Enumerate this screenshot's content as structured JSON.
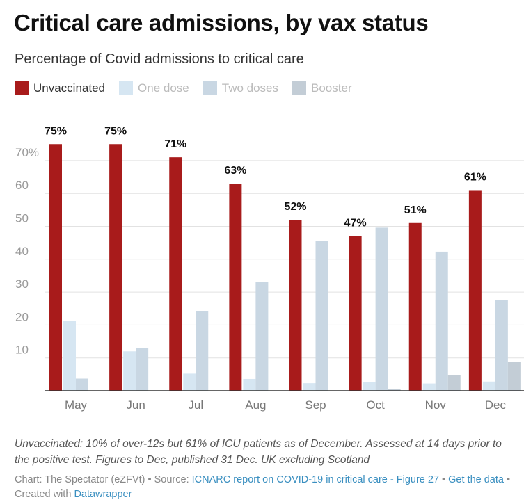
{
  "title": "Critical care admissions, by vax status",
  "subtitle": "Percentage of Covid admissions to critical care",
  "legend": [
    {
      "label": "Unvaccinated",
      "color": "#a81b1b",
      "text_color": "#333333"
    },
    {
      "label": "One dose",
      "color": "#d6e6f2",
      "text_color": "#bbbbbb"
    },
    {
      "label": "Two doses",
      "color": "#c9d7e3",
      "text_color": "#bbbbbb"
    },
    {
      "label": "Booster",
      "color": "#c3cdd6",
      "text_color": "#bbbbbb"
    }
  ],
  "chart_data": {
    "type": "bar",
    "categories": [
      "May",
      "Jun",
      "Jul",
      "Aug",
      "Sep",
      "Oct",
      "Nov",
      "Dec"
    ],
    "series": [
      {
        "name": "Unvaccinated",
        "color": "#a81b1b",
        "values": [
          75,
          75,
          71,
          63,
          52,
          47,
          51,
          61
        ]
      },
      {
        "name": "One dose",
        "color": "#d6e6f2",
        "values": [
          21.2,
          12,
          5.2,
          3.6,
          2.3,
          2.6,
          2.2,
          2.8
        ]
      },
      {
        "name": "Two doses",
        "color": "#c9d7e3",
        "values": [
          3.7,
          13.1,
          24.2,
          33,
          45.6,
          49.6,
          42.3,
          27.5
        ]
      },
      {
        "name": "Booster",
        "color": "#c3cdd6",
        "values": [
          0,
          0,
          0,
          0,
          0,
          0.6,
          4.8,
          8.8
        ]
      }
    ],
    "data_labels": [
      "75%",
      "75%",
      "71%",
      "63%",
      "52%",
      "47%",
      "51%",
      "61%"
    ],
    "y_ticks": [
      {
        "value": 10,
        "label": "10"
      },
      {
        "value": 20,
        "label": "20"
      },
      {
        "value": 30,
        "label": "30"
      },
      {
        "value": 40,
        "label": "40"
      },
      {
        "value": 50,
        "label": "50"
      },
      {
        "value": 60,
        "label": "60"
      },
      {
        "value": 70,
        "label": "70%"
      }
    ],
    "ylim": [
      0,
      80
    ],
    "grid": true,
    "legend_position": "top-left"
  },
  "note": "Unvaccinated: 10% of over-12s but 61% of ICU patients as of December. Assessed at 14 days prior to the positive test. Figures to Dec, published 31 Dec. UK excluding Scotland",
  "footer": {
    "chart_credit": "Chart: The Spectator (eZFVt)",
    "sep1": " • Source: ",
    "source_link": "ICNARC report on COVID-19 in critical care - Figure 27",
    "sep2": " • ",
    "get_data": "Get the data",
    "sep3": " • Created with ",
    "tool": "Datawrapper"
  }
}
